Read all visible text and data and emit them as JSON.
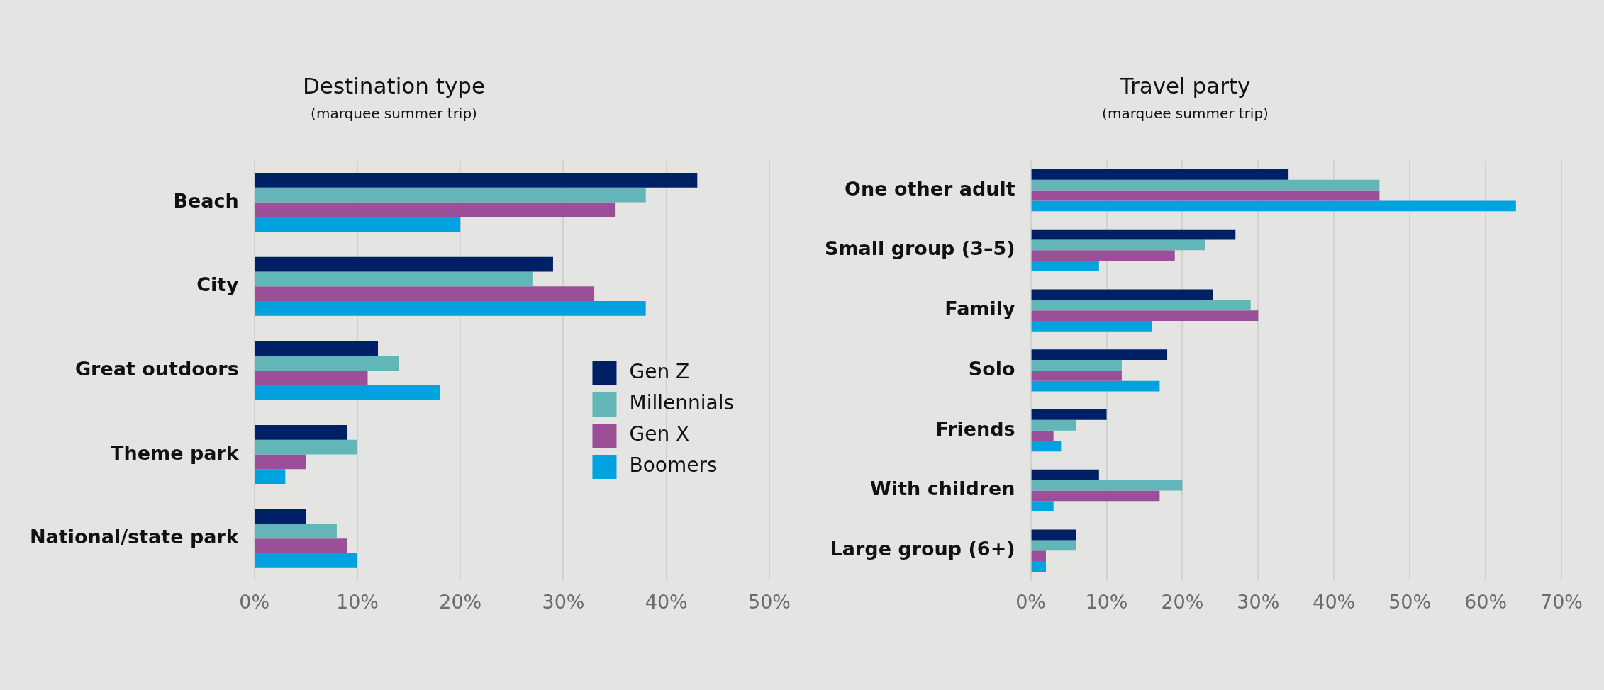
{
  "chart_data": [
    {
      "type": "bar",
      "orientation": "horizontal",
      "title": "Destination type",
      "subtitle": "(marquee summer trip)",
      "categories": [
        "Beach",
        "City",
        "Great outdoors",
        "Theme park",
        "National/state park"
      ],
      "series": [
        {
          "name": "Gen Z",
          "color": "#002065",
          "values": [
            43,
            29,
            12,
            9,
            5
          ]
        },
        {
          "name": "Millennials",
          "color": "#62b6b7",
          "values": [
            38,
            27,
            14,
            10,
            8
          ]
        },
        {
          "name": "Gen X",
          "color": "#9c4f99",
          "values": [
            35,
            33,
            11,
            5,
            9
          ]
        },
        {
          "name": "Boomers",
          "color": "#00a3e0",
          "values": [
            20,
            38,
            18,
            3,
            10
          ]
        }
      ],
      "xlim": [
        0,
        50
      ],
      "xticks": [
        {
          "value": 0,
          "label": "0%"
        },
        {
          "value": 10,
          "label": "10%"
        },
        {
          "value": 20,
          "label": "20%"
        },
        {
          "value": 30,
          "label": "30%"
        },
        {
          "value": 40,
          "label": "40%"
        },
        {
          "value": 50,
          "label": "50%"
        }
      ],
      "grid": "x",
      "legend": "right"
    },
    {
      "type": "bar",
      "orientation": "horizontal",
      "title": "Travel party",
      "subtitle": "(marquee summer trip)",
      "categories": [
        "One other adult",
        "Small group (3–5)",
        "Family",
        "Solo",
        "Friends",
        "With children",
        "Large group (6+)"
      ],
      "series": [
        {
          "color": "#002065",
          "values": [
            34,
            27,
            24,
            18,
            10,
            9,
            6
          ]
        },
        {
          "color": "#62b6b7",
          "values": [
            46,
            23,
            29,
            12,
            6,
            20,
            6
          ]
        },
        {
          "color": "#9c4f99",
          "values": [
            46,
            19,
            30,
            12,
            3,
            17,
            2
          ]
        },
        {
          "color": "#00a3e0",
          "values": [
            64,
            9,
            16,
            17,
            4,
            3,
            2
          ]
        }
      ],
      "xlim": [
        0,
        70
      ],
      "xticks": [
        {
          "value": 0,
          "label": "0%"
        },
        {
          "value": 10,
          "label": "10%"
        },
        {
          "value": 20,
          "label": "20%"
        },
        {
          "value": 30,
          "label": "30%"
        },
        {
          "value": 40,
          "label": "40%"
        },
        {
          "value": 50,
          "label": "50%"
        },
        {
          "value": 60,
          "label": "60%"
        },
        {
          "value": 70,
          "label": "70%"
        }
      ],
      "grid": "x"
    }
  ]
}
